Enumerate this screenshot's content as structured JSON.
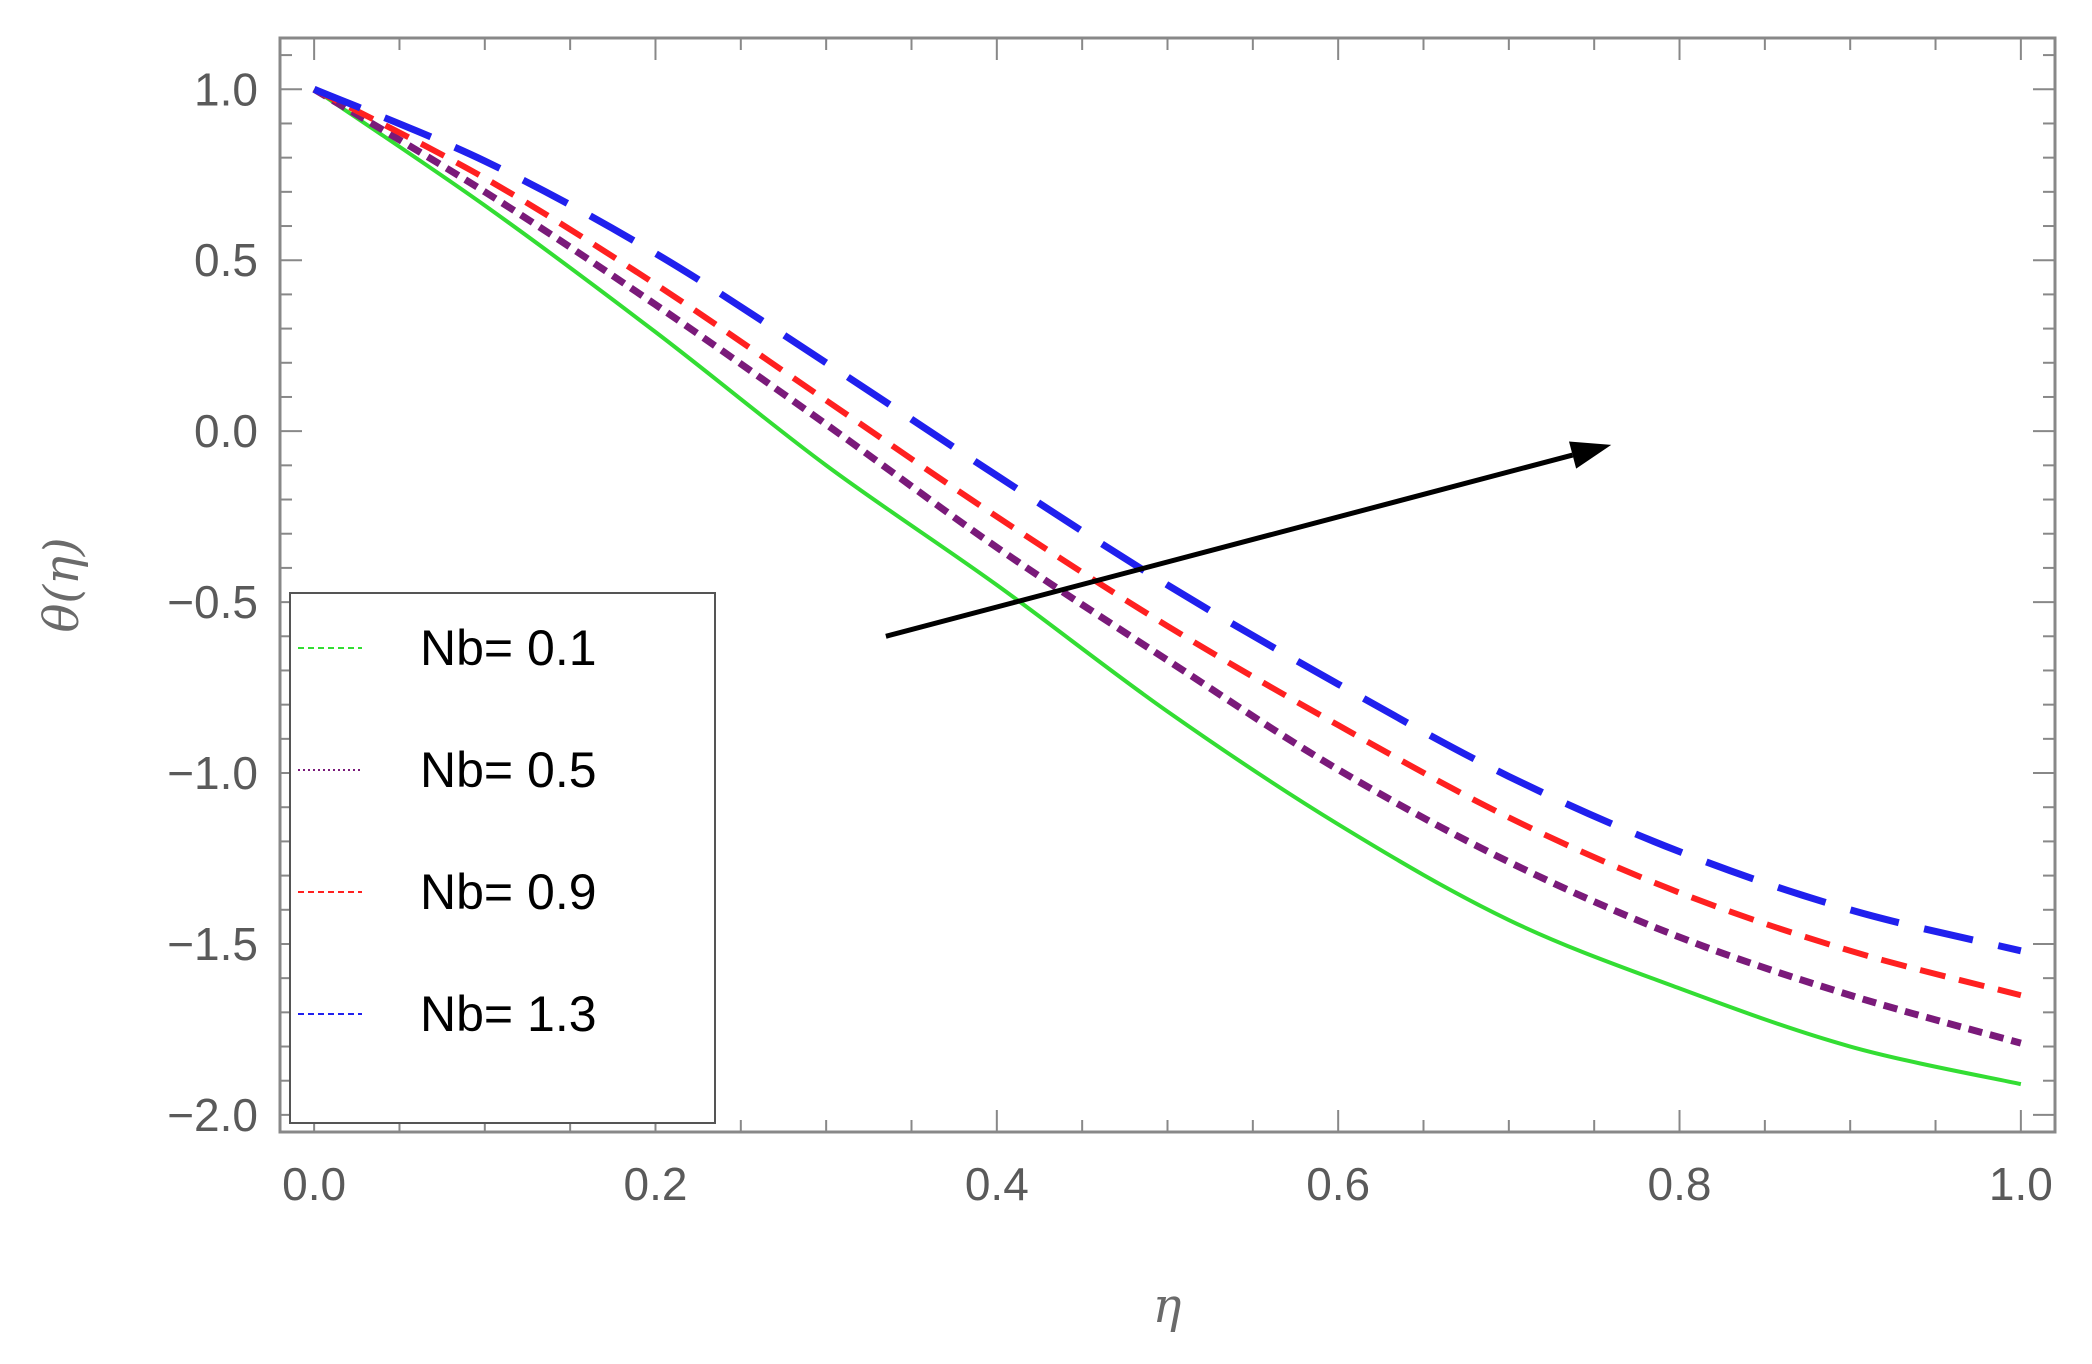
{
  "chart_data": {
    "type": "line",
    "xlabel": "η",
    "ylabel": "θ(η)",
    "xlim": [
      -0.02,
      1.02
    ],
    "ylim": [
      -2.05,
      1.15
    ],
    "x_ticks": [
      0.0,
      0.2,
      0.4,
      0.6,
      0.8,
      1.0
    ],
    "x_tick_labels": [
      "0.0",
      "0.2",
      "0.4",
      "0.6",
      "0.8",
      "1.0"
    ],
    "y_ticks": [
      1.0,
      0.5,
      0.0,
      -0.5,
      -1.0,
      -1.5,
      -2.0
    ],
    "y_tick_labels": [
      "1.0",
      "0.5",
      "0.0",
      "−0.5",
      "−1.0",
      "−1.5",
      "−2.0"
    ],
    "grid": false,
    "legend_position": "bottom-left",
    "x": [
      0.0,
      0.1,
      0.2,
      0.3,
      0.4,
      0.5,
      0.6,
      0.7,
      0.8,
      0.9,
      1.0
    ],
    "series": [
      {
        "name": "Nb= 0.1",
        "color": "#33dd33",
        "dash": "solid",
        "values": [
          1.0,
          0.66,
          0.29,
          -0.1,
          -0.45,
          -0.82,
          -1.15,
          -1.43,
          -1.63,
          -1.8,
          -1.91
        ]
      },
      {
        "name": "Nb= 0.5",
        "color": "#7a1a7a",
        "dash": "dotted",
        "values": [
          1.0,
          0.7,
          0.37,
          0.02,
          -0.34,
          -0.67,
          -0.99,
          -1.26,
          -1.48,
          -1.65,
          -1.79
        ]
      },
      {
        "name": "Nb= 0.9",
        "color": "#ff2020",
        "dash": "dashed",
        "values": [
          1.0,
          0.74,
          0.43,
          0.09,
          -0.25,
          -0.57,
          -0.86,
          -1.13,
          -1.35,
          -1.52,
          -1.65
        ]
      },
      {
        "name": "Nb= 1.3",
        "color": "#2020ee",
        "dash": "longdash",
        "values": [
          1.0,
          0.79,
          0.52,
          0.2,
          -0.13,
          -0.45,
          -0.74,
          -1.01,
          -1.23,
          -1.4,
          -1.52
        ]
      }
    ],
    "annotation": {
      "type": "arrow",
      "from": [
        0.335,
        -0.6
      ],
      "to": [
        0.76,
        -0.04
      ],
      "color": "#000000"
    }
  }
}
